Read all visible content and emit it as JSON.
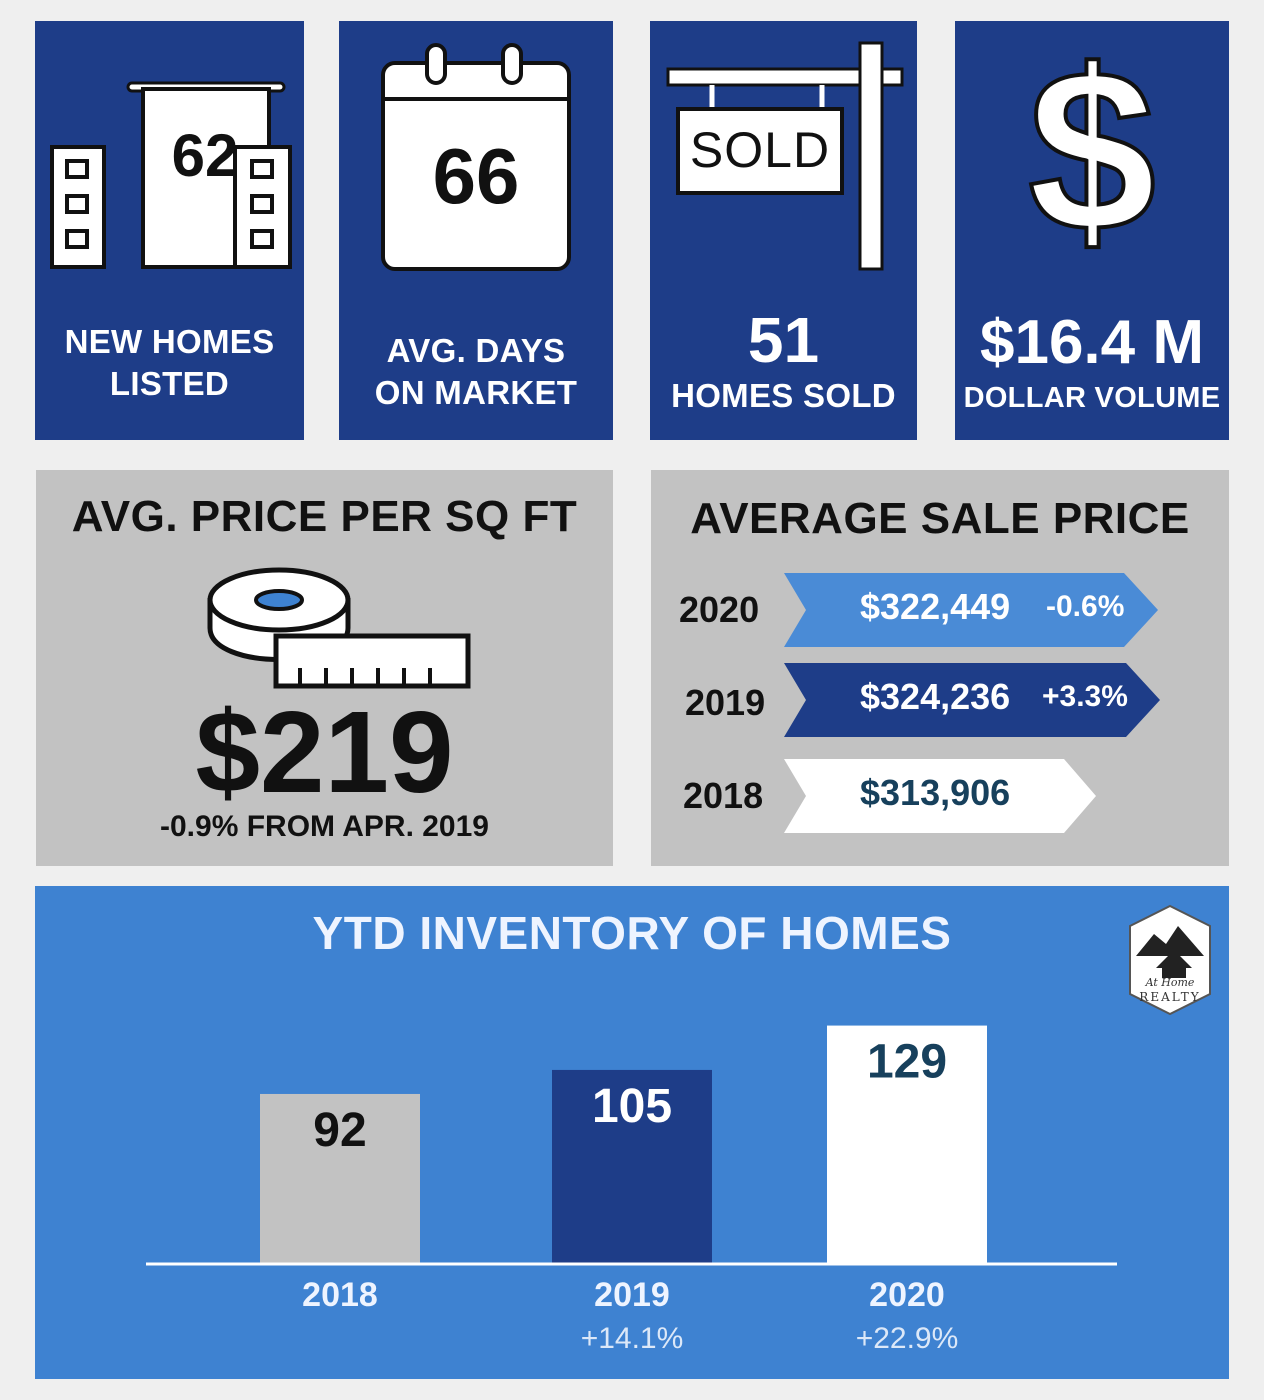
{
  "tiles": {
    "new_homes": {
      "value": "62",
      "label_line1": "NEW HOMES",
      "label_line2": "LISTED"
    },
    "days_on_market": {
      "value": "66",
      "label_line1": "AVG. DAYS",
      "label_line2": "ON MARKET"
    },
    "homes_sold": {
      "sign_text": "SOLD",
      "value": "51",
      "label": "HOMES SOLD"
    },
    "dollar_volume": {
      "icon_text": "$",
      "value": "$16.4 M",
      "label": "DOLLAR VOLUME"
    }
  },
  "price_per_sqft": {
    "title": "AVG. PRICE PER SQ FT",
    "value": "$219",
    "change_text": "-0.9% FROM APR. 2019"
  },
  "avg_sale_price": {
    "title": "AVERAGE SALE PRICE",
    "rows": [
      {
        "year": "2020",
        "price": "$322,449",
        "change": "-0.6%",
        "fill": "#4a8bd6",
        "text_color": "#ffffff"
      },
      {
        "year": "2019",
        "price": "$324,236",
        "change": "+3.3%",
        "fill": "#1e3d88",
        "text_color": "#ffffff"
      },
      {
        "year": "2018",
        "price": "$313,906",
        "change": "",
        "fill": "#ffffff",
        "text_color": "#17405c"
      }
    ]
  },
  "logo": {
    "line1": "At Home",
    "line2": "REALTY"
  },
  "chart_data": {
    "type": "bar",
    "title": "YTD INVENTORY OF HOMES",
    "categories": [
      "2018",
      "2019",
      "2020"
    ],
    "values": [
      92,
      105,
      129
    ],
    "value_labels": [
      "92",
      "105",
      "129"
    ],
    "changes": [
      "",
      "+14.1%",
      "+22.9%"
    ],
    "bar_colors": [
      "#c2c2c2",
      "#1e3d88",
      "#ffffff"
    ],
    "label_colors": [
      "#111111",
      "#ffffff",
      "#17405c"
    ],
    "ylim": [
      0,
      145
    ],
    "grid": false
  }
}
